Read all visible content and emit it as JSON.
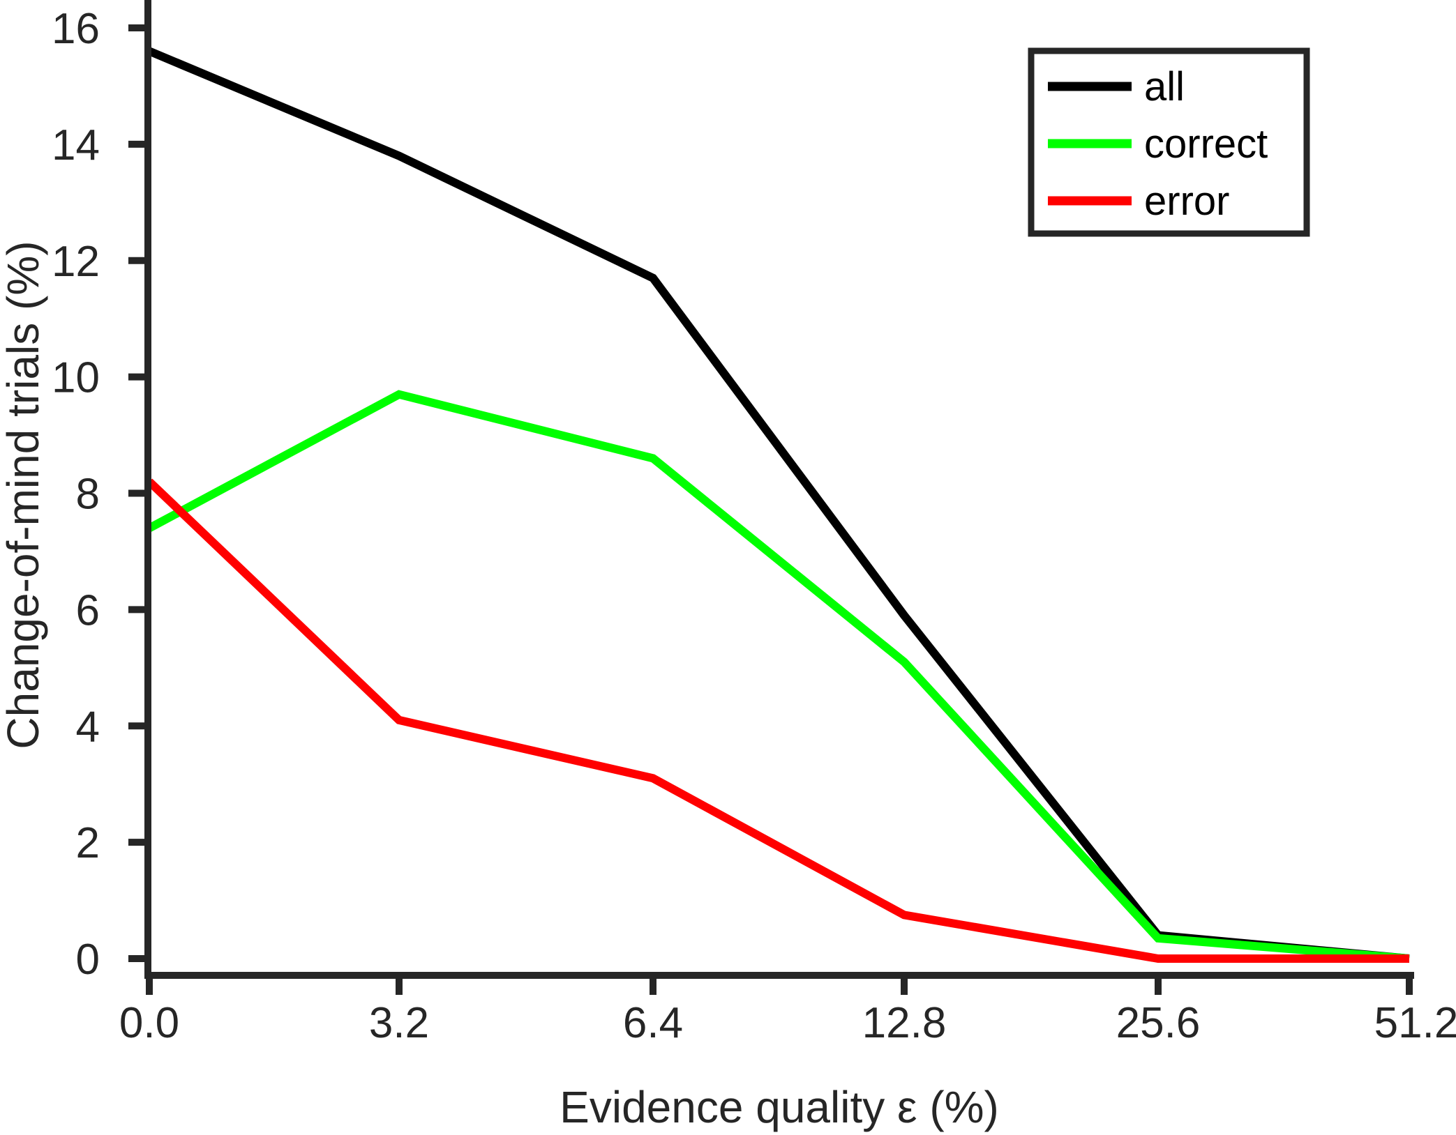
{
  "chart_data": {
    "type": "line",
    "title": "",
    "xlabel": "Evidence quality ε (%)",
    "ylabel": "Change-of-mind trials (%)",
    "x_categories": [
      "0.0",
      "3.2",
      "6.4",
      "12.8",
      "25.6",
      "51.2"
    ],
    "ylim": [
      0,
      16
    ],
    "yticks": [
      "0",
      "2",
      "4",
      "6",
      "8",
      "10",
      "12",
      "14",
      "16"
    ],
    "grid": false,
    "legend_position": "top-right",
    "series": [
      {
        "name": "all",
        "color": "#000000",
        "values": [
          15.6,
          13.8,
          11.7,
          5.9,
          0.4,
          0.0
        ]
      },
      {
        "name": "correct",
        "color": "#00ff00",
        "values": [
          7.4,
          9.7,
          8.6,
          5.1,
          0.35,
          0.0
        ]
      },
      {
        "name": "error",
        "color": "#ff0000",
        "values": [
          8.2,
          4.1,
          3.1,
          0.75,
          0.0,
          0.0
        ]
      }
    ]
  }
}
